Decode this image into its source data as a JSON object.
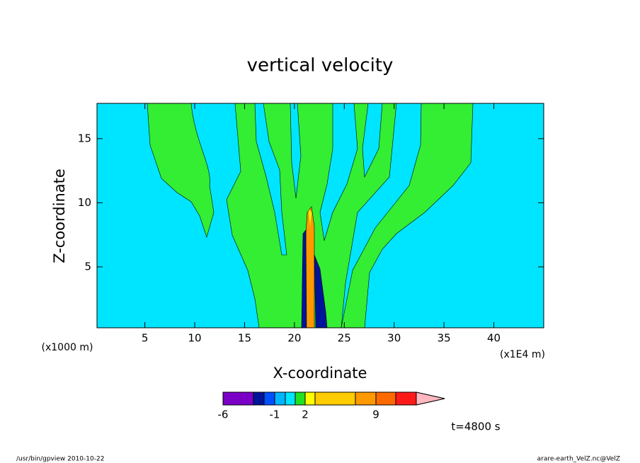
{
  "chart_data": {
    "type": "contour",
    "title": "vertical velocity",
    "xlabel": "X-coordinate",
    "ylabel": "Z-coordinate",
    "xunit": "(x1000 m)",
    "xunit2": "(x1E4 m)",
    "xlim": [
      0.2,
      45
    ],
    "ylim": [
      0.25,
      17.75
    ],
    "xticks": [
      5,
      10,
      15,
      20,
      25,
      30,
      35,
      40
    ],
    "yticks": [
      5,
      10,
      15
    ],
    "colorbar": {
      "colors": [
        "#7a00c8",
        "#00149a",
        "#0050ff",
        "#00b4ff",
        "#00e5ff",
        "#22e022",
        "#ffff00",
        "#ffcc00",
        "#ff9900",
        "#ff6a00",
        "#ff1a1a",
        "#ff7f7f",
        "#ffb8c0"
      ],
      "labels": [
        "-6",
        "-1",
        "2",
        "9"
      ]
    },
    "annotation": "t=4800 s",
    "footer_left": "/usr/bin/gpview   2010-10-22",
    "footer_right": "arare-earth_VelZ.nc@VelZ"
  }
}
